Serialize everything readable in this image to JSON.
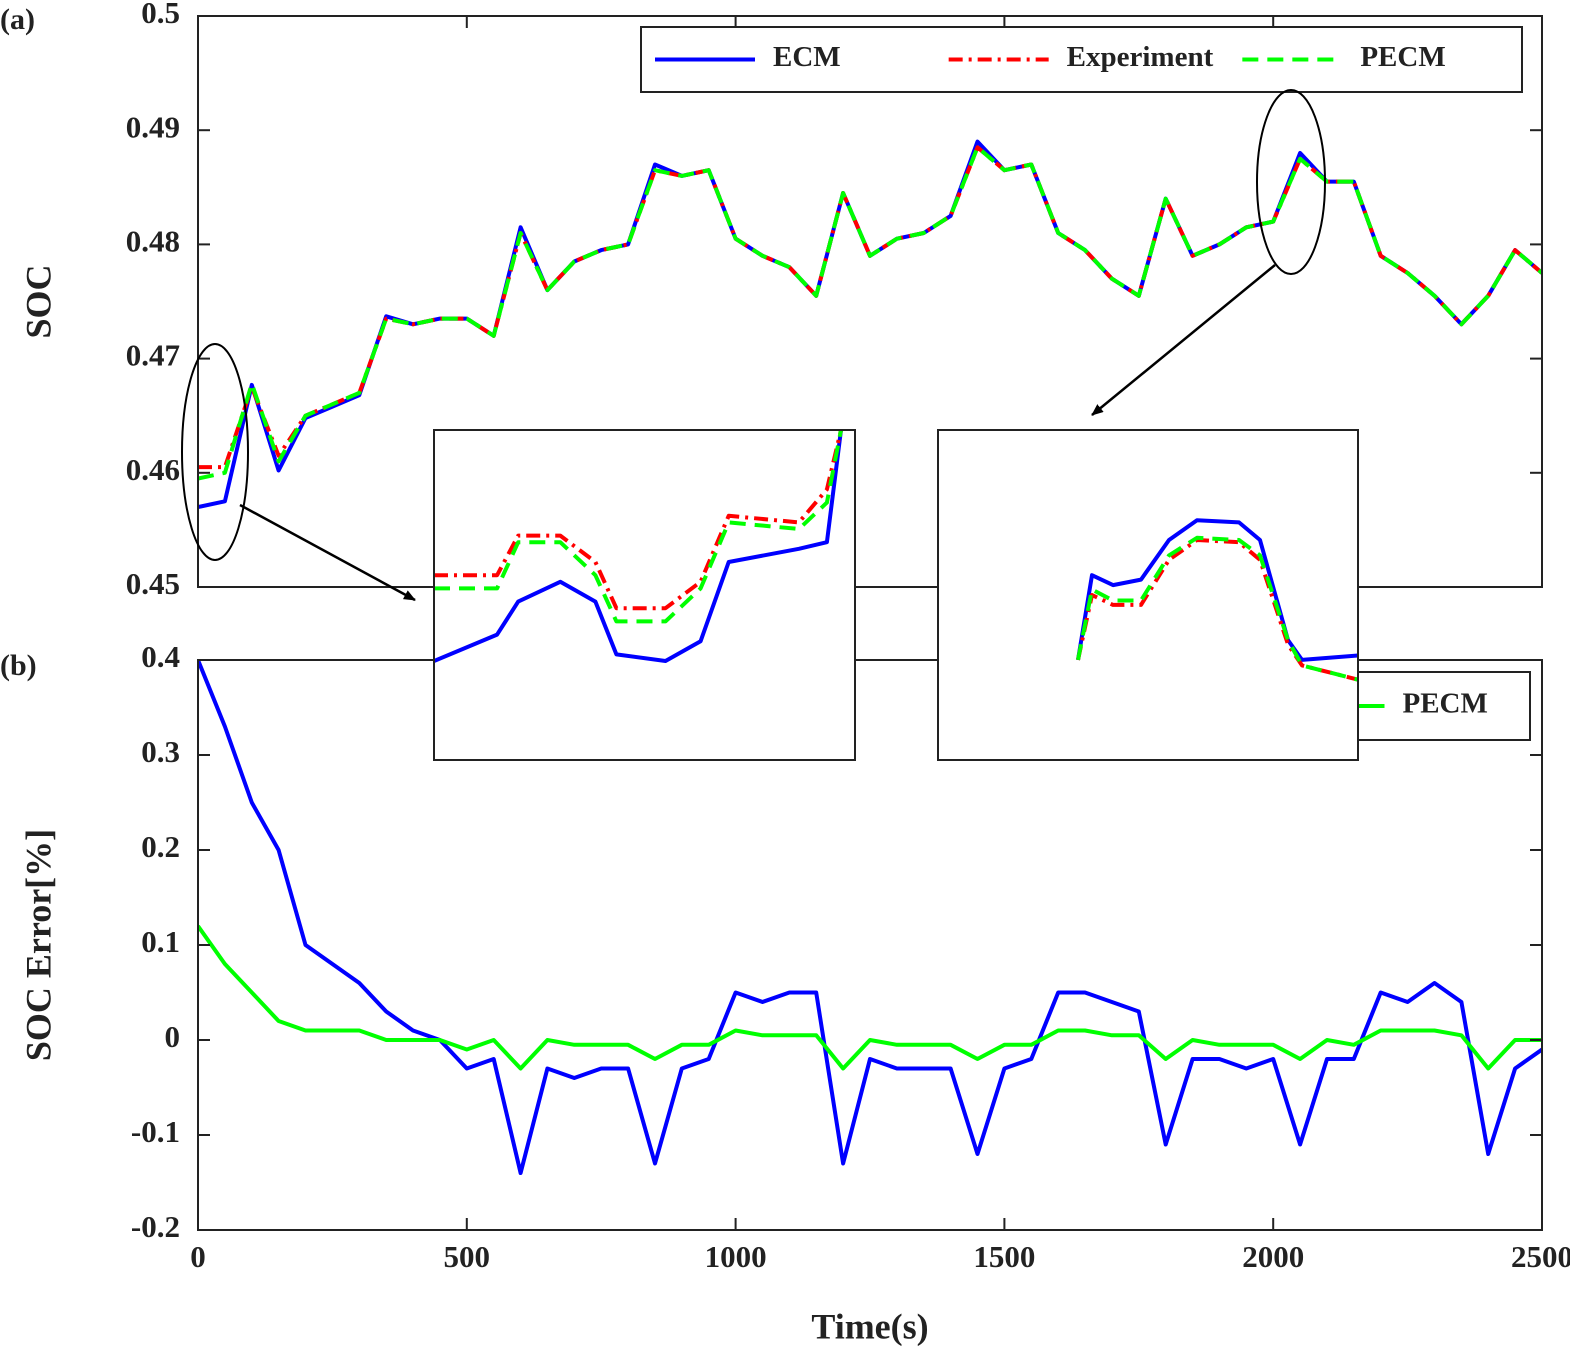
{
  "chart_data": [
    {
      "type": "line",
      "panel_label": "(a)",
      "ylabel": "SOC",
      "x": [
        0,
        50,
        100,
        150,
        200,
        250,
        300,
        350,
        400,
        450,
        500,
        550,
        600,
        650,
        700,
        750,
        800,
        850,
        900,
        950,
        1000,
        1050,
        1100,
        1150,
        1200,
        1250,
        1300,
        1350,
        1400,
        1450,
        1500,
        1550,
        1600,
        1650,
        1700,
        1750,
        1800,
        1850,
        1900,
        1950,
        2000,
        2050,
        2100,
        2150,
        2200,
        2250,
        2300,
        2350,
        2400,
        2450,
        2500
      ],
      "series": [
        {
          "name": "ECM",
          "color": "#0000ff",
          "style": "solid",
          "values": [
            0.457,
            0.4575,
            0.4677,
            0.4602,
            0.4648,
            0.4658,
            0.4668,
            0.4737,
            0.473,
            0.4735,
            0.4735,
            0.472,
            0.4815,
            0.476,
            0.4785,
            0.4795,
            0.48,
            0.487,
            0.486,
            0.4865,
            0.4805,
            0.479,
            0.478,
            0.4755,
            0.4845,
            0.479,
            0.4805,
            0.481,
            0.4825,
            0.489,
            0.4865,
            0.487,
            0.481,
            0.4795,
            0.477,
            0.4755,
            0.484,
            0.479,
            0.48,
            0.4815,
            0.482,
            0.488,
            0.4855,
            0.4855,
            0.479,
            0.4775,
            0.4755,
            0.473,
            0.4755,
            0.4795,
            0.4775
          ]
        },
        {
          "name": "Experiment",
          "color": "#ff0000",
          "style": "dashdot",
          "values": [
            0.4605,
            0.4605,
            0.4675,
            0.4615,
            0.465,
            0.466,
            0.467,
            0.4735,
            0.473,
            0.4735,
            0.4735,
            0.472,
            0.481,
            0.476,
            0.4785,
            0.4795,
            0.48,
            0.4865,
            0.486,
            0.4865,
            0.4805,
            0.479,
            0.478,
            0.4755,
            0.4845,
            0.479,
            0.4805,
            0.481,
            0.4825,
            0.4885,
            0.4865,
            0.487,
            0.481,
            0.4795,
            0.477,
            0.4755,
            0.484,
            0.479,
            0.48,
            0.4815,
            0.482,
            0.4875,
            0.4855,
            0.4855,
            0.479,
            0.4775,
            0.4755,
            0.473,
            0.4755,
            0.4795,
            0.4775
          ]
        },
        {
          "name": "PECM",
          "color": "#00ff00",
          "style": "dash",
          "values": [
            0.4595,
            0.46,
            0.4678,
            0.461,
            0.465,
            0.466,
            0.467,
            0.4735,
            0.473,
            0.4735,
            0.4735,
            0.472,
            0.481,
            0.476,
            0.4785,
            0.4795,
            0.48,
            0.4865,
            0.486,
            0.4865,
            0.4805,
            0.479,
            0.478,
            0.4755,
            0.4845,
            0.479,
            0.4805,
            0.481,
            0.4825,
            0.4885,
            0.4865,
            0.487,
            0.481,
            0.4795,
            0.477,
            0.4755,
            0.484,
            0.479,
            0.48,
            0.4815,
            0.482,
            0.4875,
            0.4855,
            0.4855,
            0.479,
            0.4775,
            0.4755,
            0.473,
            0.4755,
            0.4795,
            0.4775
          ]
        }
      ],
      "xlim": [
        0,
        2500
      ],
      "xticks": [
        0,
        500,
        1000,
        1500,
        2000,
        2500
      ],
      "xtick_labels": false,
      "ylim": [
        0.45,
        0.5
      ],
      "yticks": [
        0.45,
        0.46,
        0.47,
        0.48,
        0.49,
        0.5
      ],
      "legend": "upper right"
    },
    {
      "type": "line",
      "panel_label": "(b)",
      "ylabel": "SOC Error[%]",
      "xlabel": "Time(s)",
      "x": [
        0,
        50,
        100,
        150,
        200,
        250,
        300,
        350,
        400,
        450,
        500,
        550,
        600,
        650,
        700,
        750,
        800,
        850,
        900,
        950,
        1000,
        1050,
        1100,
        1150,
        1200,
        1250,
        1300,
        1350,
        1400,
        1450,
        1500,
        1550,
        1600,
        1650,
        1700,
        1750,
        1800,
        1850,
        1900,
        1950,
        2000,
        2050,
        2100,
        2150,
        2200,
        2250,
        2300,
        2350,
        2400,
        2450,
        2500
      ],
      "series": [
        {
          "name": "ECM",
          "color": "#0000ff",
          "style": "solid",
          "values": [
            0.4,
            0.33,
            0.25,
            0.2,
            0.1,
            0.08,
            0.06,
            0.03,
            0.01,
            0,
            -0.03,
            -0.02,
            -0.14,
            -0.03,
            -0.04,
            -0.03,
            -0.03,
            -0.13,
            -0.03,
            -0.02,
            0.05,
            0.04,
            0.05,
            0.05,
            -0.13,
            -0.02,
            -0.03,
            -0.03,
            -0.03,
            -0.12,
            -0.03,
            -0.02,
            0.05,
            0.05,
            0.04,
            0.03,
            -0.11,
            -0.02,
            -0.02,
            -0.03,
            -0.02,
            -0.11,
            -0.02,
            -0.02,
            0.05,
            0.04,
            0.06,
            0.04,
            -0.12,
            -0.03,
            -0.01
          ]
        },
        {
          "name": "PECM",
          "color": "#00ff00",
          "style": "solid",
          "values": [
            0.12,
            0.08,
            0.05,
            0.02,
            0.01,
            0.01,
            0.01,
            0,
            0,
            0,
            -0.01,
            0,
            -0.03,
            0,
            -0.005,
            -0.005,
            -0.005,
            -0.02,
            -0.005,
            -0.005,
            0.01,
            0.005,
            0.005,
            0.005,
            -0.03,
            0,
            -0.005,
            -0.005,
            -0.005,
            -0.02,
            -0.005,
            -0.005,
            0.01,
            0.01,
            0.005,
            0.005,
            -0.02,
            0,
            -0.005,
            -0.005,
            -0.005,
            -0.02,
            0,
            -0.005,
            0.01,
            0.01,
            0.01,
            0.005,
            -0.03,
            0,
            0
          ]
        }
      ],
      "xlim": [
        0,
        2500
      ],
      "xticks": [
        0,
        500,
        1000,
        1500,
        2000,
        2500
      ],
      "xtick_labels": true,
      "ylim": [
        -0.2,
        0.4
      ],
      "yticks": [
        -0.2,
        -0.1,
        0,
        0.1,
        0.2,
        0.3,
        0.4
      ],
      "legend": "upper right"
    },
    {
      "type": "line",
      "x": [
        0,
        9,
        12,
        18,
        23,
        26,
        33,
        38,
        42,
        52,
        56,
        58
      ],
      "series": [
        {
          "name": "ECM",
          "color": "#0000ff",
          "style": "solid",
          "values": [
            0.4585,
            0.4589,
            0.4594,
            0.4597,
            0.4594,
            0.4586,
            0.4585,
            0.4588,
            0.46,
            0.4602,
            0.4603,
            0.462
          ]
        },
        {
          "name": "Experiment",
          "color": "#ff0000",
          "style": "dashdot",
          "values": [
            0.4598,
            0.4598,
            0.4604,
            0.4604,
            0.46,
            0.4593,
            0.4593,
            0.4597,
            0.4607,
            0.4606,
            0.4611,
            0.462
          ]
        },
        {
          "name": "PECM",
          "color": "#00ff00",
          "style": "dash",
          "values": [
            0.4596,
            0.4596,
            0.4603,
            0.4603,
            0.4598,
            0.4591,
            0.4591,
            0.4596,
            0.4606,
            0.4605,
            0.4609,
            0.462
          ]
        }
      ],
      "xlim": [
        0,
        60
      ],
      "ylim": [
        0.457,
        0.462
      ]
    },
    {
      "type": "line",
      "x": [
        2040,
        2042,
        2045,
        2049,
        2053,
        2057,
        2063,
        2066,
        2070,
        2072,
        2080
      ],
      "series": [
        {
          "name": "ECM",
          "color": "#0000ff",
          "style": "solid",
          "values": [
            0.48691,
            0.48768,
            0.48759,
            0.48764,
            0.488,
            0.48818,
            0.48816,
            0.488,
            0.48709,
            0.48691,
            0.48695
          ]
        },
        {
          "name": "Experiment",
          "color": "#ff0000",
          "style": "dashdot",
          "values": [
            0.48691,
            0.4875,
            0.48741,
            0.48741,
            0.48782,
            0.488,
            0.48798,
            0.48782,
            0.48705,
            0.48686,
            0.48673
          ]
        },
        {
          "name": "PECM",
          "color": "#00ff00",
          "style": "dash",
          "values": [
            0.48691,
            0.48755,
            0.48745,
            0.48745,
            0.48786,
            0.48802,
            0.488,
            0.48786,
            0.48709,
            0.48686,
            0.48673
          ]
        }
      ],
      "xlim": [
        2020,
        2080
      ],
      "ylim": [
        0.486,
        0.489
      ]
    }
  ]
}
